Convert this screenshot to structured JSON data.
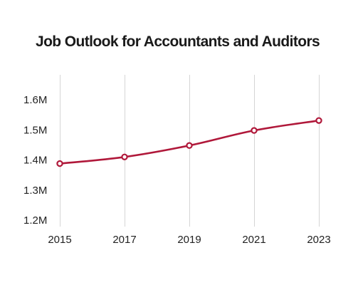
{
  "chart_data": {
    "type": "line",
    "title": "Job Outlook for Accountants and Auditors",
    "xlabel": "",
    "ylabel": "",
    "x": [
      2015,
      2017,
      2019,
      2021,
      2023
    ],
    "x_tick_labels": [
      "2015",
      "2017",
      "2019",
      "2021",
      "2023"
    ],
    "y_tick_values": [
      1.2,
      1.3,
      1.4,
      1.5,
      1.6
    ],
    "y_tick_labels": [
      "1.2M",
      "1.3M",
      "1.4M",
      "1.5M",
      "1.6M"
    ],
    "ylim": [
      1.2,
      1.6
    ],
    "series": [
      {
        "values": [
          1.388,
          1.41,
          1.448,
          1.498,
          1.531
        ]
      }
    ],
    "grid": "vertical",
    "legend": "none",
    "colors": {
      "line": "#b0183a",
      "grid": "#d5d5d5",
      "text": "#1a1a1a"
    }
  }
}
